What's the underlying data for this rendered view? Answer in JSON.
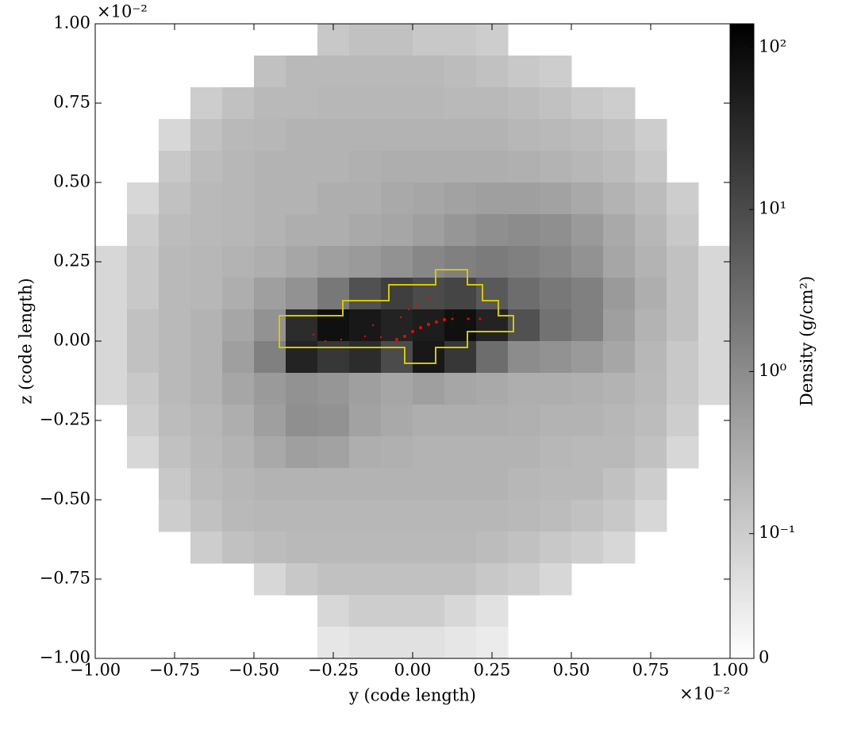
{
  "chart_data": {
    "type": "heatmap",
    "xlabel": "y  (code length)",
    "ylabel": "z  (code length)",
    "x_offset_label": "×10⁻²",
    "y_offset_label": "×10⁻²",
    "colorbar_label": "Density  (g/cm²)",
    "xlim": [
      -1,
      1
    ],
    "ylim": [
      -1,
      1
    ],
    "xticks": [
      {
        "value": -1,
        "label": "−1.00"
      },
      {
        "value": -0.75,
        "label": "−0.75"
      },
      {
        "value": -0.5,
        "label": "−0.50"
      },
      {
        "value": -0.25,
        "label": "−0.25"
      },
      {
        "value": 0,
        "label": "0.00"
      },
      {
        "value": 0.25,
        "label": "0.25"
      },
      {
        "value": 0.5,
        "label": "0.50"
      },
      {
        "value": 0.75,
        "label": "0.75"
      },
      {
        "value": 1,
        "label": "1.00"
      }
    ],
    "yticks": [
      {
        "value": -1,
        "label": "−1.00"
      },
      {
        "value": -0.75,
        "label": "−0.75"
      },
      {
        "value": -0.5,
        "label": "−0.50"
      },
      {
        "value": -0.25,
        "label": "−0.25"
      },
      {
        "value": 0,
        "label": "0.00"
      },
      {
        "value": 0.25,
        "label": "0.25"
      },
      {
        "value": 0.5,
        "label": "0.50"
      },
      {
        "value": 0.75,
        "label": "0.75"
      },
      {
        "value": 1,
        "label": "1.00"
      }
    ],
    "colorbar_scale": "symlog",
    "linthresh": 0.1,
    "linscale": 0.77,
    "clim": [
      0,
      140
    ],
    "colormap": "gray_r",
    "cticks": [
      0,
      {
        "value": 0.1,
        "label": "10⁻¹"
      },
      {
        "value": 1,
        "label": "10⁰"
      },
      {
        "value": 10,
        "label": "10¹"
      },
      {
        "value": 100,
        "label": "10²"
      }
    ],
    "z": [
      [
        null,
        null,
        null,
        null,
        null,
        null,
        null,
        0.12,
        0.15,
        0.15,
        0.12,
        0.12,
        0.1,
        null,
        null,
        null,
        null,
        null,
        null,
        null
      ],
      [
        null,
        null,
        null,
        null,
        null,
        0.15,
        0.2,
        0.2,
        0.2,
        0.2,
        0.2,
        0.18,
        0.15,
        0.12,
        0.1,
        null,
        null,
        null,
        null,
        null
      ],
      [
        null,
        null,
        null,
        0.1,
        0.15,
        0.2,
        0.2,
        0.22,
        0.22,
        0.22,
        0.22,
        0.2,
        0.2,
        0.18,
        0.15,
        0.12,
        0.1,
        null,
        null,
        null
      ],
      [
        null,
        null,
        0.08,
        0.15,
        0.2,
        0.22,
        0.25,
        0.25,
        0.25,
        0.25,
        0.25,
        0.25,
        0.25,
        0.22,
        0.2,
        0.18,
        0.15,
        0.1,
        null,
        null
      ],
      [
        null,
        null,
        0.12,
        0.18,
        0.22,
        0.25,
        0.25,
        0.25,
        0.28,
        0.3,
        0.3,
        0.3,
        0.3,
        0.28,
        0.25,
        0.22,
        0.18,
        0.12,
        null,
        null
      ],
      [
        null,
        0.08,
        0.15,
        0.2,
        0.22,
        0.25,
        0.25,
        0.3,
        0.3,
        0.35,
        0.4,
        0.45,
        0.5,
        0.5,
        0.45,
        0.35,
        0.25,
        0.18,
        0.1,
        null
      ],
      [
        null,
        0.1,
        0.18,
        0.2,
        0.22,
        0.25,
        0.3,
        0.3,
        0.35,
        0.4,
        0.5,
        0.7,
        0.9,
        1,
        0.9,
        0.6,
        0.35,
        0.22,
        0.12,
        null
      ],
      [
        0.08,
        0.12,
        0.2,
        0.22,
        0.25,
        0.3,
        0.4,
        0.5,
        0.6,
        0.8,
        1.2,
        1.5,
        1.8,
        1.5,
        1.2,
        0.8,
        0.4,
        0.25,
        0.15,
        0.08
      ],
      [
        0.08,
        0.12,
        0.2,
        0.22,
        0.3,
        0.5,
        0.8,
        2,
        8,
        15,
        10,
        12,
        6,
        3,
        2,
        1.5,
        0.6,
        0.3,
        0.15,
        0.08
      ],
      [
        0.08,
        0.15,
        0.2,
        0.25,
        0.4,
        0.8,
        30,
        80,
        60,
        40,
        50,
        80,
        40,
        8,
        2.5,
        1.5,
        0.5,
        0.25,
        0.15,
        0.08
      ],
      [
        0.08,
        0.15,
        0.2,
        0.25,
        0.5,
        1.5,
        40,
        20,
        30,
        10,
        60,
        20,
        3,
        1,
        0.8,
        0.6,
        0.4,
        0.22,
        0.12,
        0.08
      ],
      [
        0.08,
        0.12,
        0.2,
        0.25,
        0.4,
        0.6,
        0.8,
        0.7,
        0.5,
        0.4,
        0.5,
        0.4,
        0.35,
        0.3,
        0.3,
        0.28,
        0.25,
        0.2,
        0.12,
        0.08
      ],
      [
        null,
        0.1,
        0.18,
        0.22,
        0.3,
        0.5,
        0.9,
        0.8,
        0.45,
        0.35,
        0.3,
        0.3,
        0.3,
        0.28,
        0.25,
        0.25,
        0.22,
        0.18,
        0.1,
        null
      ],
      [
        null,
        0.08,
        0.15,
        0.2,
        0.25,
        0.35,
        0.5,
        0.45,
        0.3,
        0.28,
        0.25,
        0.25,
        0.25,
        0.25,
        0.22,
        0.2,
        0.2,
        0.15,
        0.08,
        null
      ],
      [
        null,
        null,
        0.12,
        0.18,
        0.22,
        0.25,
        0.25,
        0.25,
        0.25,
        0.25,
        0.25,
        0.25,
        0.25,
        0.22,
        0.2,
        0.2,
        0.15,
        0.1,
        null,
        null
      ],
      [
        null,
        null,
        0.1,
        0.15,
        0.2,
        0.22,
        0.22,
        0.22,
        0.22,
        0.22,
        0.22,
        0.22,
        0.22,
        0.2,
        0.18,
        0.15,
        0.12,
        0.08,
        null,
        null
      ],
      [
        null,
        null,
        null,
        0.1,
        0.15,
        0.18,
        0.2,
        0.2,
        0.2,
        0.2,
        0.2,
        0.2,
        0.18,
        0.15,
        0.12,
        0.1,
        0.08,
        null,
        null,
        null
      ],
      [
        null,
        null,
        null,
        null,
        null,
        0.08,
        0.12,
        0.15,
        0.15,
        0.15,
        0.15,
        0.15,
        0.12,
        0.1,
        0.08,
        null,
        null,
        null,
        null,
        null
      ],
      [
        null,
        null,
        null,
        null,
        null,
        null,
        null,
        0.08,
        0.1,
        0.1,
        0.1,
        0.08,
        0.06,
        null,
        null,
        null,
        null,
        null,
        null,
        null
      ],
      [
        null,
        null,
        null,
        null,
        null,
        null,
        null,
        0.05,
        0.06,
        0.06,
        0.06,
        0.05,
        0.04,
        null,
        null,
        null,
        null,
        null,
        null,
        null
      ]
    ]
  }
}
